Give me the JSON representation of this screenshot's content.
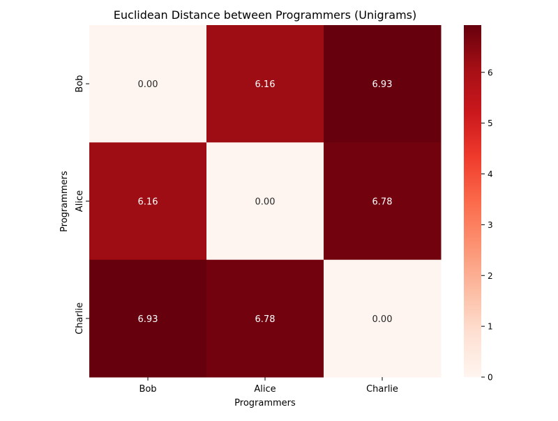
{
  "chart_data": {
    "type": "heatmap",
    "title": "Euclidean Distance between Programmers (Unigrams)",
    "xlabel": "Programmers",
    "ylabel": "Programmers",
    "x_categories": [
      "Bob",
      "Alice",
      "Charlie"
    ],
    "y_categories": [
      "Bob",
      "Alice",
      "Charlie"
    ],
    "values": [
      [
        0.0,
        6.16,
        6.93
      ],
      [
        6.16,
        0.0,
        6.78
      ],
      [
        6.93,
        6.78,
        0.0
      ]
    ],
    "cell_labels": [
      [
        "0.00",
        "6.16",
        "6.93"
      ],
      [
        "6.16",
        "0.00",
        "6.78"
      ],
      [
        "6.93",
        "6.78",
        "0.00"
      ]
    ],
    "colormap": "Reds",
    "vmin": 0,
    "vmax": 6.93,
    "colorbar": {
      "ticks": [
        0,
        1,
        2,
        3,
        4,
        5,
        6
      ],
      "tick_labels": [
        "0",
        "1",
        "2",
        "3",
        "4",
        "5",
        "6"
      ]
    },
    "grid": false,
    "legend": "colorbar-right"
  }
}
